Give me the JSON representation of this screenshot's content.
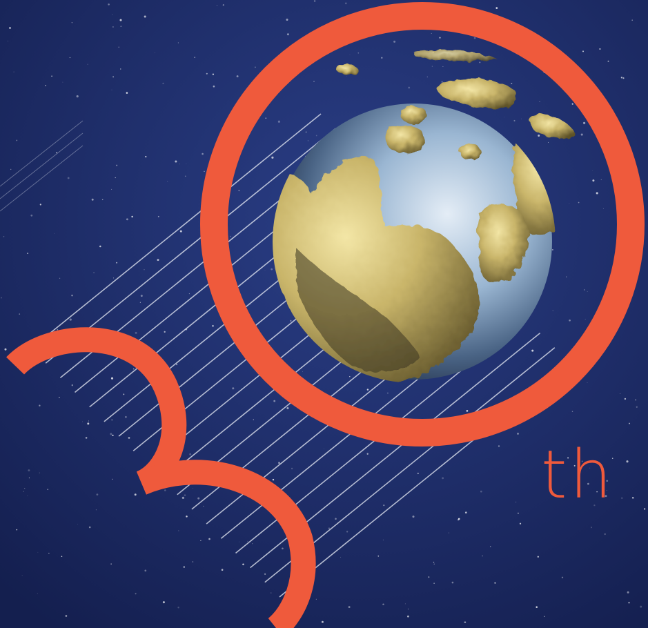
{
  "poster": {
    "number_glyphs": "30",
    "ordinal_suffix": "th"
  },
  "colors": {
    "space_deep": "#152255",
    "space_mid": "#24377a",
    "accent_coral": "#ef5a3c",
    "gold": "#c9b56a",
    "gold_dark": "#6f6232",
    "globe_blue": "#9ab6d2",
    "stripe": "#e8ecf5"
  },
  "icons": {
    "globe": "gold-continent-globe-icon",
    "stars": "starfield-icon"
  }
}
